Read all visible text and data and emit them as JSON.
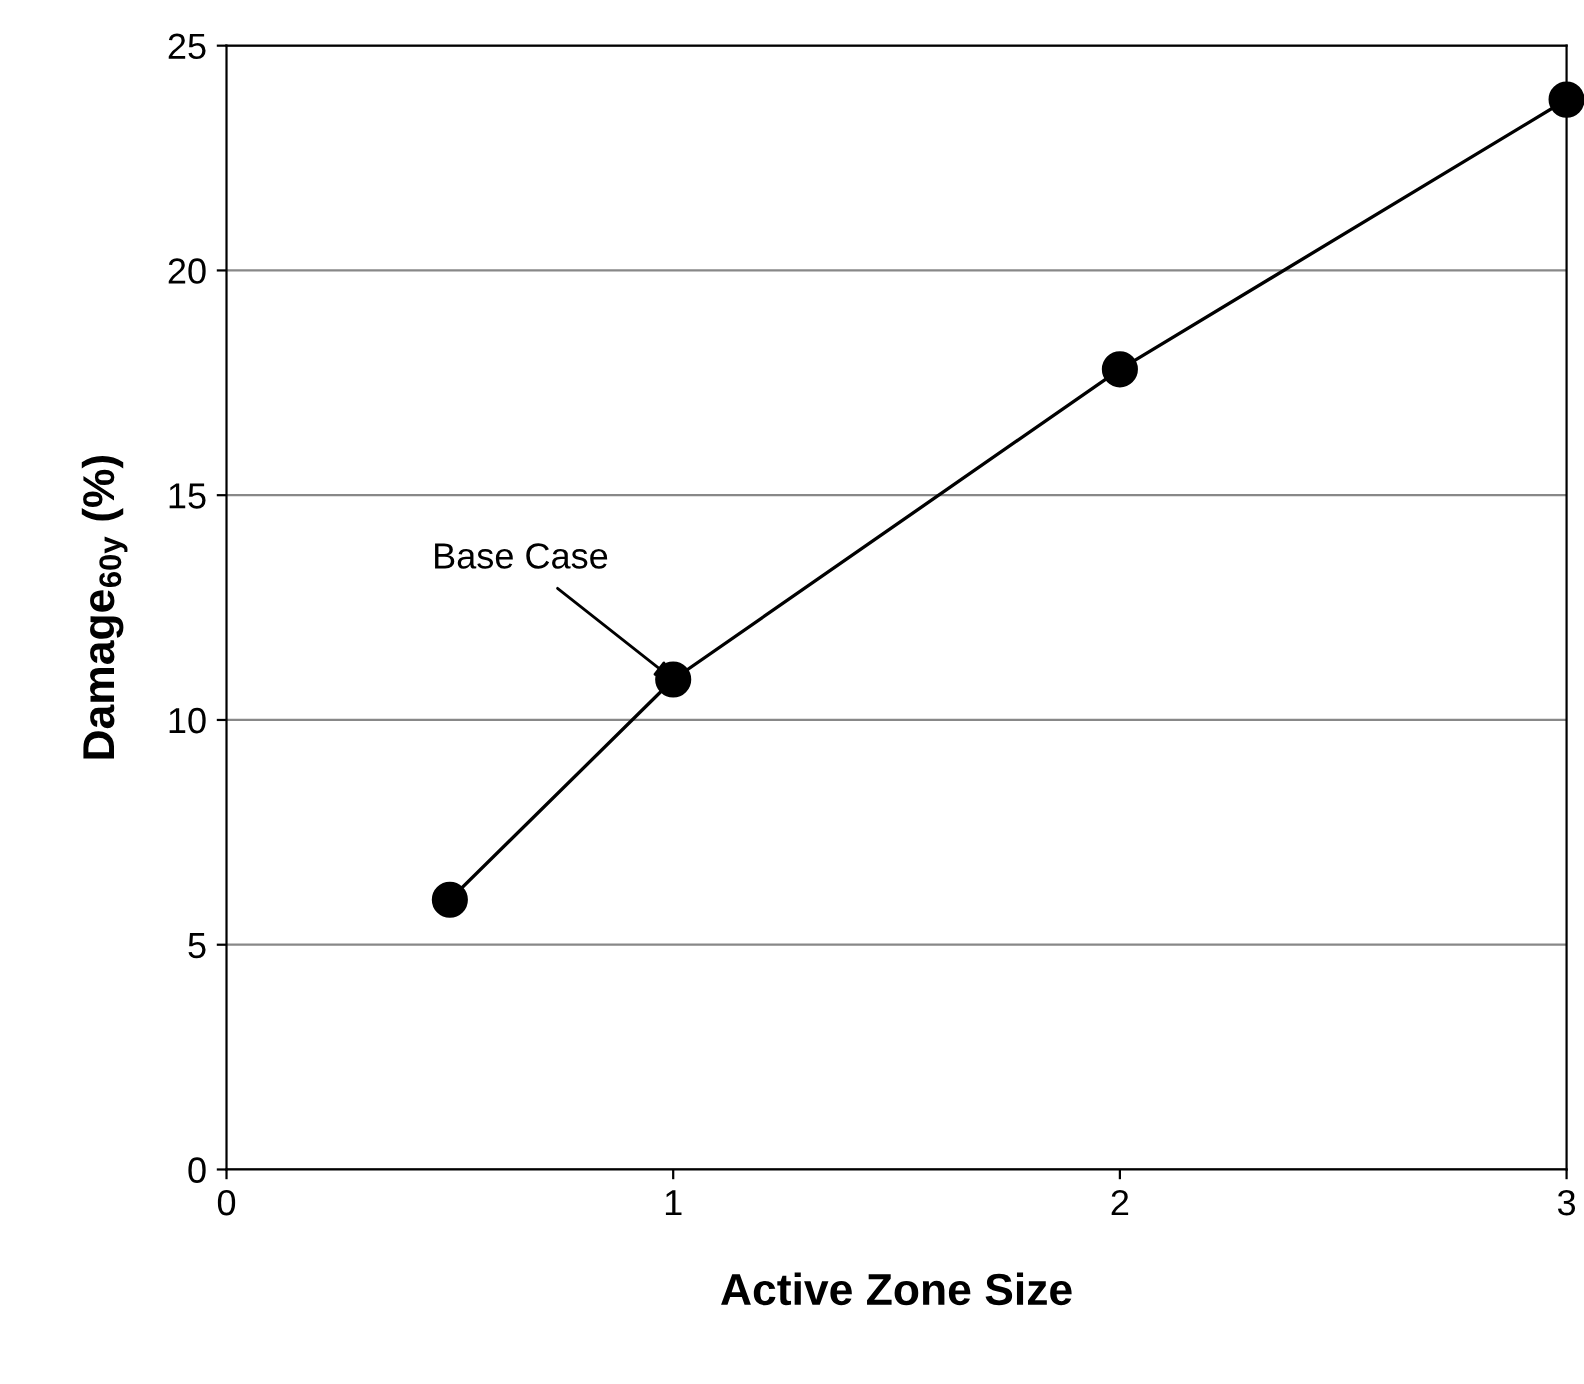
{
  "chart_data": {
    "type": "line",
    "xlabel": "Active Zone Size",
    "ylabel": "Damage$_{60y}$ (%)",
    "x": [
      0.5,
      1,
      2,
      3
    ],
    "series": [
      {
        "color": "#000000",
        "values": [
          6.0,
          10.9,
          17.8,
          23.8
        ]
      }
    ],
    "xlim": [
      0,
      3
    ],
    "xticks": [
      0,
      1,
      2,
      3
    ],
    "ylim": [
      0,
      25
    ],
    "yticks": [
      0,
      5,
      10,
      15,
      20,
      25
    ],
    "grid": "y",
    "marker": "circle",
    "line_style": "solid",
    "legend": false,
    "annotations": [
      {
        "text": "Base Case",
        "x": 1,
        "y": 10.9
      }
    ]
  }
}
